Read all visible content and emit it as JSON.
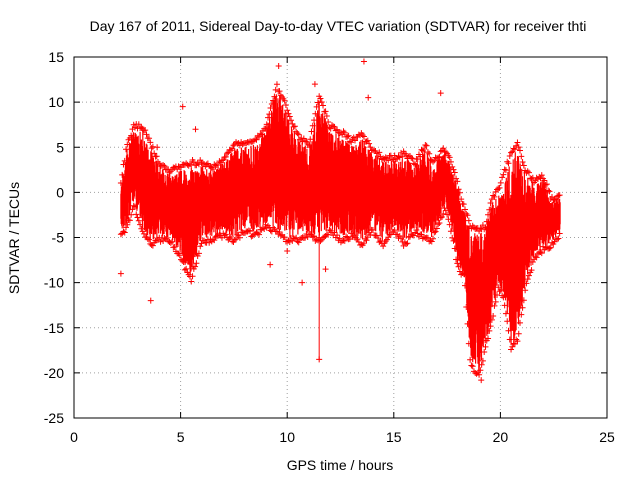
{
  "chart_data": {
    "type": "scatter",
    "title": "Day 167 of 2011, Sidereal Day-to-day VTEC variation (SDTVAR) for receiver thti",
    "xlabel": "GPS time / hours",
    "ylabel": "SDTVAR / TECUs",
    "xlim": [
      0,
      25
    ],
    "ylim": [
      -25,
      15
    ],
    "xticks": [
      0,
      5,
      10,
      15,
      20,
      25
    ],
    "yticks": [
      -25,
      -20,
      -15,
      -10,
      -5,
      0,
      5,
      10,
      15
    ],
    "grid": true,
    "marker": "+",
    "color": "#ff0000",
    "envelope": [
      {
        "x": 2.2,
        "lo": -4.5,
        "hi": 1.0
      },
      {
        "x": 2.5,
        "lo": -3.5,
        "hi": 5.0
      },
      {
        "x": 2.8,
        "lo": -1.0,
        "hi": 7.0
      },
      {
        "x": 3.2,
        "lo": -4.0,
        "hi": 7.0
      },
      {
        "x": 3.6,
        "lo": -5.5,
        "hi": 5.0
      },
      {
        "x": 4.0,
        "lo": -5.0,
        "hi": 3.0
      },
      {
        "x": 4.5,
        "lo": -5.0,
        "hi": 2.0
      },
      {
        "x": 5.0,
        "lo": -7.0,
        "hi": 2.5
      },
      {
        "x": 5.5,
        "lo": -9.5,
        "hi": 3.0
      },
      {
        "x": 6.0,
        "lo": -5.0,
        "hi": 3.0
      },
      {
        "x": 6.5,
        "lo": -5.0,
        "hi": 2.5
      },
      {
        "x": 7.0,
        "lo": -4.5,
        "hi": 3.5
      },
      {
        "x": 7.5,
        "lo": -5.0,
        "hi": 5.0
      },
      {
        "x": 8.0,
        "lo": -4.0,
        "hi": 5.0
      },
      {
        "x": 8.5,
        "lo": -4.5,
        "hi": 5.5
      },
      {
        "x": 9.0,
        "lo": -3.5,
        "hi": 7.0
      },
      {
        "x": 9.5,
        "lo": -4.0,
        "hi": 11.5
      },
      {
        "x": 10.0,
        "lo": -5.0,
        "hi": 9.0
      },
      {
        "x": 10.5,
        "lo": -5.0,
        "hi": 6.0
      },
      {
        "x": 11.0,
        "lo": -4.5,
        "hi": 5.0
      },
      {
        "x": 11.5,
        "lo": -5.0,
        "hi": 10.5
      },
      {
        "x": 12.0,
        "lo": -4.0,
        "hi": 7.0
      },
      {
        "x": 12.5,
        "lo": -5.0,
        "hi": 6.5
      },
      {
        "x": 13.0,
        "lo": -4.5,
        "hi": 5.5
      },
      {
        "x": 13.5,
        "lo": -5.5,
        "hi": 6.0
      },
      {
        "x": 14.0,
        "lo": -4.0,
        "hi": 4.5
      },
      {
        "x": 14.5,
        "lo": -5.5,
        "hi": 3.5
      },
      {
        "x": 15.0,
        "lo": -4.0,
        "hi": 3.5
      },
      {
        "x": 15.5,
        "lo": -5.5,
        "hi": 4.0
      },
      {
        "x": 16.0,
        "lo": -4.0,
        "hi": 3.0
      },
      {
        "x": 16.5,
        "lo": -5.0,
        "hi": 5.0
      },
      {
        "x": 16.8,
        "lo": -5.0,
        "hi": 3.0
      },
      {
        "x": 17.4,
        "lo": -1.5,
        "hi": 4.5
      },
      {
        "x": 17.7,
        "lo": -4.0,
        "hi": 3.0
      },
      {
        "x": 18.0,
        "lo": -8.0,
        "hi": 0.5
      },
      {
        "x": 18.3,
        "lo": -9.0,
        "hi": -2.0
      },
      {
        "x": 18.6,
        "lo": -19.0,
        "hi": -4.0
      },
      {
        "x": 19.0,
        "lo": -20.0,
        "hi": -4.5
      },
      {
        "x": 19.3,
        "lo": -17.0,
        "hi": -4.0
      },
      {
        "x": 19.6,
        "lo": -14.0,
        "hi": -1.0
      },
      {
        "x": 19.9,
        "lo": -10.0,
        "hi": 0.0
      },
      {
        "x": 20.2,
        "lo": -12.0,
        "hi": 2.0
      },
      {
        "x": 20.5,
        "lo": -17.0,
        "hi": 4.0
      },
      {
        "x": 20.8,
        "lo": -16.0,
        "hi": 5.0
      },
      {
        "x": 21.2,
        "lo": -10.0,
        "hi": 2.0
      },
      {
        "x": 21.6,
        "lo": -7.0,
        "hi": 1.0
      },
      {
        "x": 22.0,
        "lo": -6.0,
        "hi": 1.5
      },
      {
        "x": 22.4,
        "lo": -5.5,
        "hi": -1.0
      },
      {
        "x": 22.8,
        "lo": -4.5,
        "hi": -0.5
      }
    ],
    "outliers": [
      {
        "x": 2.2,
        "y": -9.0
      },
      {
        "x": 3.6,
        "y": -12.0
      },
      {
        "x": 3.9,
        "y": 5.0
      },
      {
        "x": 5.1,
        "y": 9.5
      },
      {
        "x": 5.7,
        "y": 7.0
      },
      {
        "x": 9.6,
        "y": 14.0
      },
      {
        "x": 9.2,
        "y": -8.0
      },
      {
        "x": 10.0,
        "y": -6.5
      },
      {
        "x": 10.7,
        "y": -10.0
      },
      {
        "x": 11.3,
        "y": 12.0
      },
      {
        "x": 11.5,
        "y": -18.5
      },
      {
        "x": 11.8,
        "y": -8.5
      },
      {
        "x": 13.6,
        "y": 14.5
      },
      {
        "x": 13.8,
        "y": 10.5
      },
      {
        "x": 17.2,
        "y": 11.0
      },
      {
        "x": 18.6,
        "y": -12.0
      },
      {
        "x": 19.1,
        "y": -20.8
      }
    ]
  }
}
